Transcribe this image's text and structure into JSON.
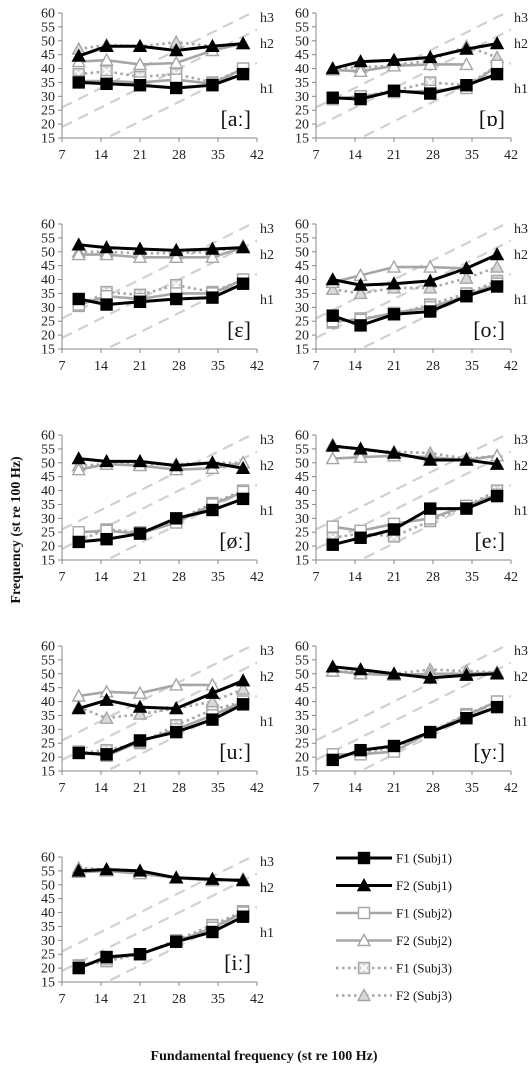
{
  "figure": {
    "xlabel": "Fundamental frequency (st re 100 Hz)",
    "ylabel": "Frequency (st re 100 Hz)",
    "harmonic_labels": [
      "h1",
      "h2",
      "h3"
    ]
  },
  "legend": [
    {
      "key": "f1s1",
      "label": "F1 (Subj1)",
      "color": "#000000",
      "marker": "square",
      "fill": "#000000",
      "dash": false
    },
    {
      "key": "f2s1",
      "label": "F2 (Subj1)",
      "color": "#000000",
      "marker": "triangle",
      "fill": "#000000",
      "dash": false
    },
    {
      "key": "f1s2",
      "label": "F1 (Subj2)",
      "color": "#a6a6a6",
      "marker": "square",
      "fill": "#ffffff",
      "dash": false
    },
    {
      "key": "f2s2",
      "label": "F2 (Subj2)",
      "color": "#a6a6a6",
      "marker": "triangle",
      "fill": "#ffffff",
      "dash": false
    },
    {
      "key": "f1s3",
      "label": "F1 (Subj3)",
      "color": "#a6a6a6",
      "marker": "squarex",
      "fill": "#d9d9d9",
      "dash": true
    },
    {
      "key": "f2s3",
      "label": "F2 (Subj3)",
      "color": "#a6a6a6",
      "marker": "triangle",
      "fill": "#d9d9d9",
      "dash": true
    }
  ],
  "chart_data": [
    {
      "type": "line",
      "vowel": "[aː]",
      "xlim": [
        7,
        42
      ],
      "ylim": [
        15,
        60
      ],
      "xticks": [
        7,
        14,
        21,
        28,
        35,
        42
      ],
      "yticks": [
        15,
        20,
        25,
        30,
        35,
        40,
        45,
        50,
        55,
        60
      ],
      "x": [
        10,
        15,
        21,
        27.5,
        34,
        39.5
      ],
      "series": [
        {
          "key": "f1s1",
          "values": [
            35,
            34.5,
            34,
            33,
            34,
            38
          ]
        },
        {
          "key": "f2s1",
          "values": [
            44.5,
            48,
            48,
            46.5,
            48,
            49
          ]
        },
        {
          "key": "f1s2",
          "values": [
            35.5,
            35.5,
            35,
            36,
            34.5,
            40
          ]
        },
        {
          "key": "f2s2",
          "values": [
            42.5,
            43,
            41.5,
            42,
            46.5,
            49
          ]
        },
        {
          "key": "f1s3",
          "values": [
            38,
            39,
            37,
            38,
            35,
            40
          ]
        },
        {
          "key": "f2s3",
          "values": [
            47,
            48.5,
            48,
            49.5,
            48,
            49
          ]
        }
      ]
    },
    {
      "type": "line",
      "vowel": "[ɒ]",
      "xlim": [
        7,
        42
      ],
      "ylim": [
        15,
        60
      ],
      "xticks": [
        7,
        14,
        21,
        28,
        35,
        42
      ],
      "yticks": [
        15,
        20,
        25,
        30,
        35,
        40,
        45,
        50,
        55,
        60
      ],
      "x": [
        10,
        15,
        21,
        27.5,
        34,
        39.5
      ],
      "series": [
        {
          "key": "f1s1",
          "values": [
            29.5,
            29,
            32,
            31,
            34,
            38
          ]
        },
        {
          "key": "f2s1",
          "values": [
            40,
            42.5,
            43,
            44,
            47,
            49
          ]
        },
        {
          "key": "f1s2",
          "values": [
            29,
            30,
            31.5,
            32,
            33,
            41
          ]
        },
        {
          "key": "f2s2",
          "values": [
            39.5,
            39,
            41,
            41.5,
            41.5,
            null
          ]
        },
        {
          "key": "f1s3",
          "values": [
            29,
            30,
            32,
            35,
            34,
            41
          ]
        },
        {
          "key": "f2s3",
          "values": [
            40,
            40.5,
            41,
            43,
            48,
            44
          ]
        }
      ]
    },
    {
      "type": "line",
      "vowel": "[ɛ]",
      "xlim": [
        7,
        42
      ],
      "ylim": [
        15,
        60
      ],
      "xticks": [
        7,
        14,
        21,
        28,
        35,
        42
      ],
      "yticks": [
        15,
        20,
        25,
        30,
        35,
        40,
        45,
        50,
        55,
        60
      ],
      "x": [
        10,
        15,
        21,
        27.5,
        34,
        39.5
      ],
      "series": [
        {
          "key": "f1s1",
          "values": [
            33,
            31,
            32,
            33,
            33.5,
            38.5
          ]
        },
        {
          "key": "f2s1",
          "values": [
            52.5,
            51.5,
            51,
            50.5,
            51,
            51.5
          ]
        },
        {
          "key": "f1s2",
          "values": [
            31,
            34,
            33,
            35,
            35,
            40
          ]
        },
        {
          "key": "f2s2",
          "values": [
            49,
            49,
            48,
            48,
            48,
            51.5
          ]
        },
        {
          "key": "f1s3",
          "values": [
            30.5,
            35.5,
            34.5,
            38,
            35.5,
            40
          ]
        },
        {
          "key": "f2s3",
          "values": [
            50,
            50,
            49.5,
            49.5,
            50,
            52
          ]
        }
      ]
    },
    {
      "type": "line",
      "vowel": "[oː]",
      "xlim": [
        7,
        42
      ],
      "ylim": [
        15,
        60
      ],
      "xticks": [
        7,
        14,
        21,
        28,
        35,
        42
      ],
      "yticks": [
        15,
        20,
        25,
        30,
        35,
        40,
        45,
        50,
        55,
        60
      ],
      "x": [
        10,
        15,
        21,
        27.5,
        34,
        39.5
      ],
      "series": [
        {
          "key": "f1s1",
          "values": [
            27,
            23.5,
            27.5,
            28.5,
            34,
            37.5
          ]
        },
        {
          "key": "f2s1",
          "values": [
            40,
            38,
            38.5,
            39.5,
            44,
            49
          ]
        },
        {
          "key": "f1s2",
          "values": [
            25,
            25.5,
            28,
            30,
            34,
            38.5
          ]
        },
        {
          "key": "f2s2",
          "values": [
            39,
            41.5,
            44.5,
            44.5,
            44,
            null
          ]
        },
        {
          "key": "f1s3",
          "values": [
            24.5,
            26,
            27.5,
            31,
            35,
            39.5
          ]
        },
        {
          "key": "f2s3",
          "values": [
            36.5,
            35,
            37,
            37,
            40.5,
            44.5
          ]
        }
      ]
    },
    {
      "type": "line",
      "vowel": "[øː]",
      "xlim": [
        7,
        42
      ],
      "ylim": [
        15,
        60
      ],
      "xticks": [
        7,
        14,
        21,
        28,
        35,
        42
      ],
      "yticks": [
        15,
        20,
        25,
        30,
        35,
        40,
        45,
        50,
        55,
        60
      ],
      "x": [
        10,
        15,
        21,
        27.5,
        34,
        39.5
      ],
      "series": [
        {
          "key": "f1s1",
          "values": [
            21.5,
            22.5,
            24.5,
            30,
            33,
            37
          ]
        },
        {
          "key": "f2s1",
          "values": [
            51.5,
            50.5,
            50.5,
            49,
            50,
            48
          ]
        },
        {
          "key": "f1s2",
          "values": [
            25,
            25.5,
            24.5,
            28.5,
            35,
            39.5
          ]
        },
        {
          "key": "f2s2",
          "values": [
            47.5,
            49.5,
            49,
            47.5,
            48,
            50
          ]
        },
        {
          "key": "f1s3",
          "values": [
            22,
            26,
            25,
            29,
            35.5,
            40
          ]
        },
        {
          "key": "f2s3",
          "values": [
            49,
            49.5,
            49.5,
            49.5,
            50,
            50
          ]
        }
      ]
    },
    {
      "type": "line",
      "vowel": "[eː]",
      "xlim": [
        7,
        42
      ],
      "ylim": [
        15,
        60
      ],
      "xticks": [
        7,
        14,
        21,
        28,
        35,
        42
      ],
      "yticks": [
        15,
        20,
        25,
        30,
        35,
        40,
        45,
        50,
        55,
        60
      ],
      "x": [
        10,
        15,
        21,
        27.5,
        34,
        39.5
      ],
      "series": [
        {
          "key": "f1s1",
          "values": [
            20.5,
            23,
            26,
            33.5,
            33.5,
            38
          ]
        },
        {
          "key": "f2s1",
          "values": [
            56,
            55,
            53.5,
            51,
            51,
            49.5
          ]
        },
        {
          "key": "f1s2",
          "values": [
            27,
            25.5,
            28,
            30,
            34.5,
            38.5
          ]
        },
        {
          "key": "f2s2",
          "values": [
            51.5,
            52,
            52.5,
            52,
            51,
            52.5
          ]
        },
        {
          "key": "f1s3",
          "values": [
            23,
            24.5,
            23.5,
            29,
            34.5,
            40
          ]
        },
        {
          "key": "f2s3",
          "values": [
            56.5,
            54.5,
            54,
            53.5,
            51.5,
            52.5
          ]
        }
      ]
    },
    {
      "type": "line",
      "vowel": "[uː]",
      "xlim": [
        7,
        42
      ],
      "ylim": [
        15,
        60
      ],
      "xticks": [
        7,
        14,
        21,
        28,
        35,
        42
      ],
      "yticks": [
        15,
        20,
        25,
        30,
        35,
        40,
        45,
        50,
        55,
        60
      ],
      "x": [
        10,
        15,
        21,
        27.5,
        34,
        39.5
      ],
      "series": [
        {
          "key": "f1s1",
          "values": [
            21.5,
            21,
            26,
            29,
            33.5,
            39
          ]
        },
        {
          "key": "f2s1",
          "values": [
            37.5,
            40.5,
            38,
            37.5,
            43,
            47.5
          ]
        },
        {
          "key": "f1s2",
          "values": [
            22,
            20.5,
            25.5,
            30,
            35,
            40
          ]
        },
        {
          "key": "f2s2",
          "values": [
            42,
            43.5,
            43,
            46,
            46,
            null
          ]
        },
        {
          "key": "f1s3",
          "values": [
            21.5,
            22.5,
            25,
            31.5,
            37,
            40
          ]
        },
        {
          "key": "f2s3",
          "values": [
            38,
            34,
            35.5,
            37.5,
            40,
            44.5
          ]
        }
      ]
    },
    {
      "type": "line",
      "vowel": "[yː]",
      "xlim": [
        7,
        42
      ],
      "ylim": [
        15,
        60
      ],
      "xticks": [
        7,
        14,
        21,
        28,
        35,
        42
      ],
      "yticks": [
        15,
        20,
        25,
        30,
        35,
        40,
        45,
        50,
        55,
        60
      ],
      "x": [
        10,
        15,
        21,
        27.5,
        34,
        39.5
      ],
      "series": [
        {
          "key": "f1s1",
          "values": [
            19,
            22.5,
            24,
            29,
            34,
            38
          ]
        },
        {
          "key": "f2s1",
          "values": [
            52.5,
            51.5,
            50,
            48.5,
            49.5,
            50
          ]
        },
        {
          "key": "f1s2",
          "values": [
            21,
            21,
            22,
            29,
            35,
            40
          ]
        },
        {
          "key": "f2s2",
          "values": [
            51,
            50,
            49.5,
            50,
            50,
            50.5
          ]
        },
        {
          "key": "f1s3",
          "values": [
            20.5,
            21.5,
            23.5,
            29,
            35.5,
            40
          ]
        },
        {
          "key": "f2s3",
          "values": [
            51,
            50.5,
            50,
            51.5,
            51,
            50.5
          ]
        }
      ]
    },
    {
      "type": "line",
      "vowel": "[iː]",
      "xlim": [
        7,
        42
      ],
      "ylim": [
        15,
        60
      ],
      "xticks": [
        7,
        14,
        21,
        28,
        35,
        42
      ],
      "yticks": [
        15,
        20,
        25,
        30,
        35,
        40,
        45,
        50,
        55,
        60
      ],
      "x": [
        10,
        15,
        21,
        27.5,
        34,
        39.5
      ],
      "series": [
        {
          "key": "f1s1",
          "values": [
            20,
            24,
            25,
            29.5,
            33,
            38.5
          ]
        },
        {
          "key": "f2s1",
          "values": [
            55,
            55.5,
            55,
            52.5,
            52,
            51.5
          ]
        },
        {
          "key": "f1s2",
          "values": [
            20.5,
            23.5,
            25,
            29.5,
            34.5,
            40
          ]
        },
        {
          "key": "f2s2",
          "values": [
            54.5,
            55,
            54,
            52.5,
            51.5,
            52
          ]
        },
        {
          "key": "f1s3",
          "values": [
            21,
            22.5,
            25,
            30,
            35.5,
            40.5
          ]
        },
        {
          "key": "f2s3",
          "values": [
            56,
            55.5,
            54.5,
            52.5,
            51.5,
            52
          ]
        }
      ]
    }
  ]
}
